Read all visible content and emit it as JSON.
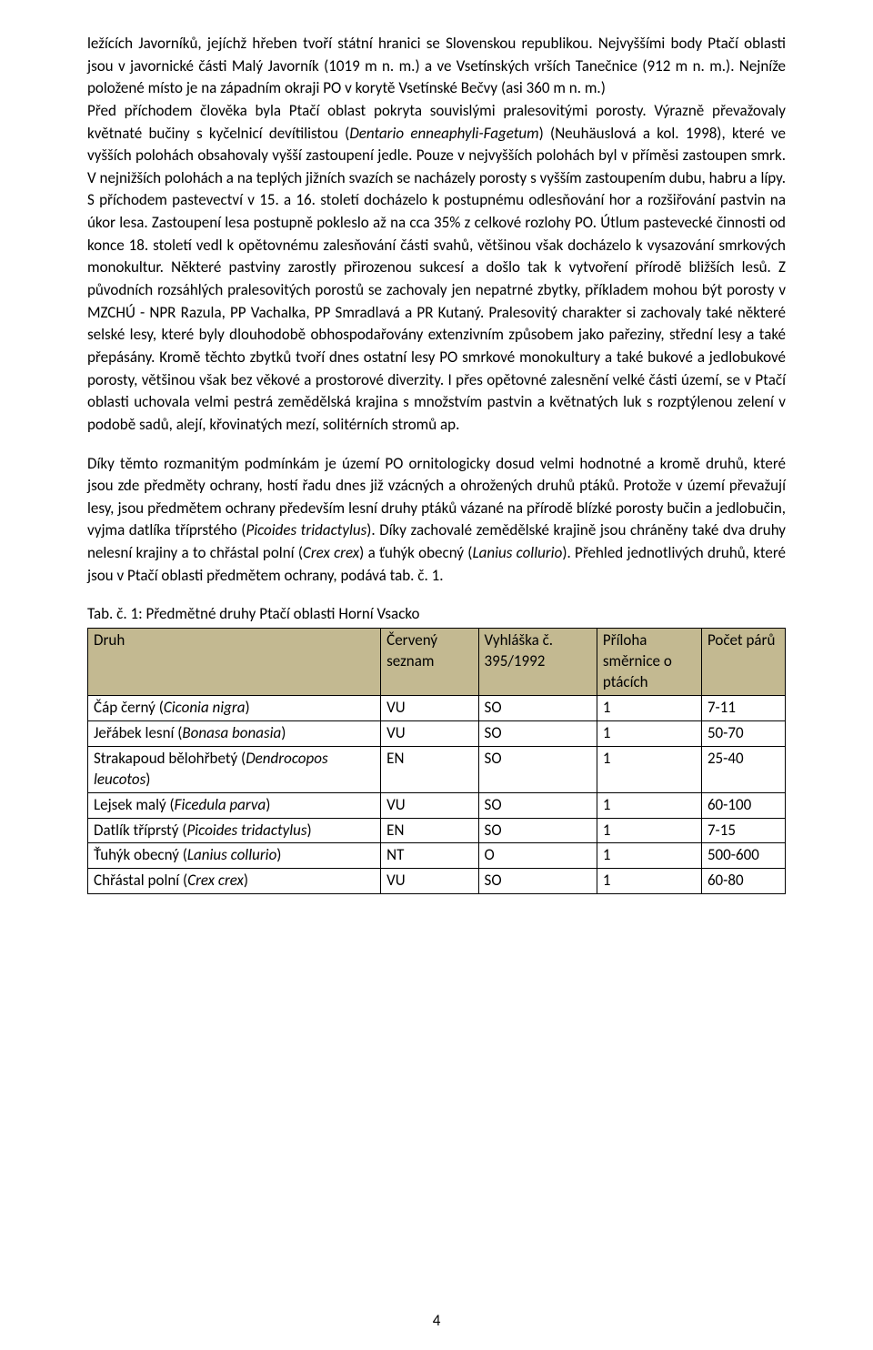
{
  "page_number": "4",
  "paragraphs": {
    "p1_html": "ležících Javorníků, jejíchž hřeben tvoří státní hranici se Slovenskou republikou. Nejvyššími body Ptačí oblasti jsou v javornické části Malý Javorník (1019 m n. m.) a ve Vsetínských vrších Tanečnice (912 m n. m.). Nejníže položené místo je na západním okraji PO v korytě Vsetínské Bečvy (asi 360 m n. m.)",
    "p2_html": "Před příchodem člověka byla Ptačí oblast pokryta souvislými pralesovitými porosty. Výrazně převažovaly květnaté bučiny s kyčelnicí devítilistou (<span class=\"italic\">Dentario enneaphyli-Fagetum</span>) (Neuhäuslová a kol. 1998), které ve vyšších polohách obsahovaly vyšší zastoupení jedle. Pouze v nejvyšších polohách byl v příměsi zastoupen smrk. V nejnižších polohách a na teplých jižních svazích se nacházely porosty s vyšším zastoupením dubu, habru a lípy. S příchodem pastevectví v 15. a 16. století docházelo k postupnému odlesňování hor a rozšiřování pastvin na úkor lesa. Zastoupení lesa postupně pokleslo až na cca 35% z celkové rozlohy PO. Útlum pastevecké činnosti od konce 18. století vedl k opětovnému zalesňování části svahů, většinou však docházelo k vysazování smrkových  monokultur. Některé pastviny zarostly přirozenou sukcesí a došlo tak k vytvoření přírodě bližších lesů. Z původních rozsáhlých pralesovitých porostů se zachovaly jen nepatrné zbytky, příkladem mohou být porosty v MZCHÚ - NPR Razula, PP Vachalka, PP Smradlavá a PR Kutaný. Pralesovitý charakter si zachovaly také některé selské lesy, které byly dlouhodobě obhospodařovány extenzivním způsobem jako pařeziny, střední lesy a také přepásány. Kromě těchto zbytků tvoří dnes ostatní lesy PO smrkové monokultury a také bukové a jedlobukové porosty, většinou však bez věkové a prostorové diverzity. I přes opětovné zalesnění velké části území, se v Ptačí oblasti uchovala velmi pestrá zemědělská krajina s množstvím pastvin a květnatých luk s rozptýlenou zelení v podobě sadů, alejí, křovinatých mezí, solitérních stromů ap.",
    "p3_html": "Díky těmto rozmanitým podmínkám je území PO ornitologicky dosud velmi hodnotné a kromě druhů, které jsou zde předměty ochrany, hostí řadu dnes již vzácných a ohrožených druhů ptáků. Protože v území převažují lesy, jsou předmětem ochrany především lesní druhy ptáků vázané na přírodě blízké porosty bučin a jedlobučin, vyjma datlíka tříprstého (<span class=\"italic\">Picoides tridactylus</span>). Díky zachovalé zemědělské krajině jsou chráněny také dva druhy nelesní krajiny a to chřástal polní (<span class=\"italic\">Crex crex</span>) a ťuhýk obecný (<span class=\"italic\">Lanius collurio</span>).   Přehled jednotlivých druhů, které jsou v Ptačí oblasti předmětem ochrany, podává tab. č. 1."
  },
  "table": {
    "caption": "Tab. č. 1: Předmětné druhy Ptačí oblasti Horní Vsacko",
    "header_bg": "#c3b991",
    "col_widths": [
      "42%",
      "14%",
      "17%",
      "15%",
      "12%"
    ],
    "columns": [
      "Druh",
      "Červený seznam",
      "Vyhláška č. 395/1992",
      "Příloha směrnice o ptácích",
      "Počet párů"
    ],
    "rows": [
      {
        "druh_html": "Čáp černý (<span class=\"italic\">Ciconia nigra</span>)",
        "cerveny": "VU",
        "vyhlaska": "SO",
        "priloha": "1",
        "pocet": "7-11"
      },
      {
        "druh_html": "Jeřábek lesní (<span class=\"italic\">Bonasa bonasia</span>)",
        "cerveny": "VU",
        "vyhlaska": "SO",
        "priloha": "1",
        "pocet": "50-70"
      },
      {
        "druh_html": "Strakapoud bělohřbetý (<span class=\"italic\">Dendrocopos leucotos</span>)",
        "cerveny": "EN",
        "vyhlaska": "SO",
        "priloha": "1",
        "pocet": "25-40"
      },
      {
        "druh_html": "Lejsek malý (<span class=\"italic\">Ficedula parva</span>)",
        "cerveny": "VU",
        "vyhlaska": "SO",
        "priloha": "1",
        "pocet": "60-100"
      },
      {
        "druh_html": "Datlík tříprstý (<span class=\"italic\">Picoides tridactylus</span>)",
        "cerveny": "EN",
        "vyhlaska": "SO",
        "priloha": "1",
        "pocet": "7-15"
      },
      {
        "druh_html": "Ťuhýk obecný (<span class=\"italic\">Lanius collurio</span>)",
        "cerveny": "NT",
        "vyhlaska": "O",
        "priloha": "1",
        "pocet": "500-600"
      },
      {
        "druh_html": "Chřástal polní (<span class=\"italic\">Crex crex</span>)",
        "cerveny": "VU",
        "vyhlaska": "SO",
        "priloha": "1",
        "pocet": "60-80"
      }
    ]
  }
}
